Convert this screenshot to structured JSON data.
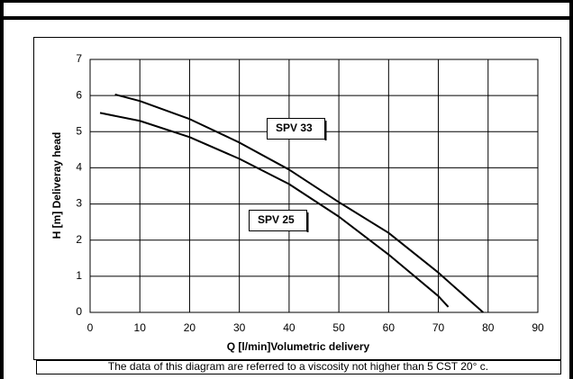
{
  "chart_data": {
    "type": "line",
    "xlabel": "Q [l/min]Volumetric delivery",
    "ylabel": "H [m] Deliveray head",
    "note": "The data of this diagram are referred to a viscosity not higher than 5 CST 20° c.",
    "xlim": [
      0,
      90
    ],
    "xticks": [
      0,
      10,
      20,
      30,
      40,
      50,
      60,
      70,
      80,
      90
    ],
    "ylim": [
      0,
      7
    ],
    "yticks": [
      0,
      1,
      2,
      3,
      4,
      5,
      6,
      7
    ],
    "grid": true,
    "series": [
      {
        "name": "SPV 33",
        "color": "#000000",
        "x": [
          5,
          10,
          20,
          30,
          40,
          50,
          60,
          70,
          79
        ],
        "values": [
          6.03,
          5.85,
          5.35,
          4.7,
          3.95,
          3.05,
          2.2,
          1.1,
          0
        ]
      },
      {
        "name": "SPV 25",
        "color": "#000000",
        "x": [
          2,
          10,
          20,
          30,
          40,
          50,
          60,
          70,
          72
        ],
        "values": [
          5.52,
          5.3,
          4.85,
          4.25,
          3.55,
          2.65,
          1.6,
          0.45,
          0.15
        ]
      }
    ]
  }
}
